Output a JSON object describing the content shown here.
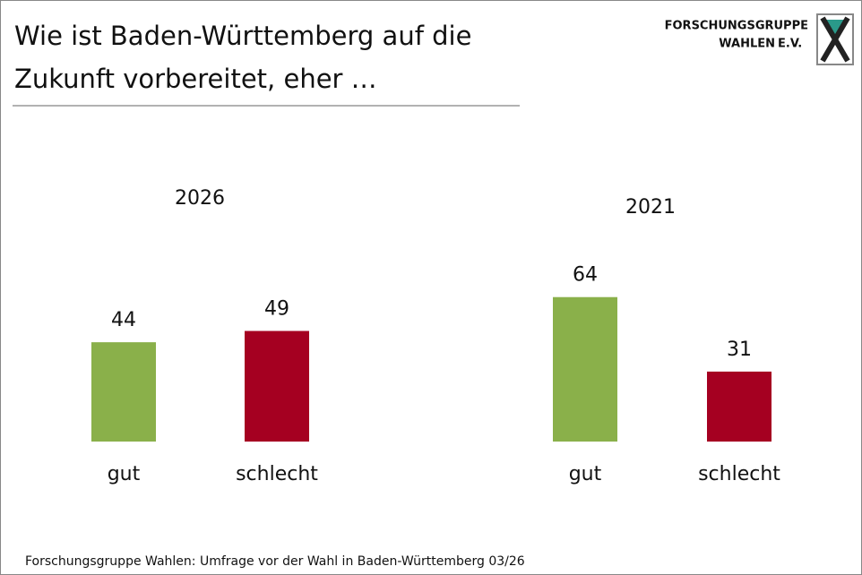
{
  "title": [
    "Wie ist Baden-Württemberg auf die",
    "Zukunft vorbereitet, eher …"
  ],
  "logo": {
    "line1": "FORSCHUNGSGRUPPE",
    "line2": "WAHLEN",
    "line2b": "E.V."
  },
  "source": "Forschungsgruppe Wahlen: Umfrage vor der Wahl in Baden-Württemberg 03/26",
  "chart_data": [
    {
      "type": "bar",
      "title": "2026",
      "categories": [
        "gut",
        "schlecht"
      ],
      "values": [
        44,
        49
      ],
      "colors": [
        "#8ab04a",
        "#a50021"
      ],
      "ylim": [
        0,
        100
      ]
    },
    {
      "type": "bar",
      "title": "2021",
      "categories": [
        "gut",
        "schlecht"
      ],
      "values": [
        64,
        31
      ],
      "colors": [
        "#8ab04a",
        "#a50021"
      ],
      "ylim": [
        0,
        100
      ]
    }
  ]
}
